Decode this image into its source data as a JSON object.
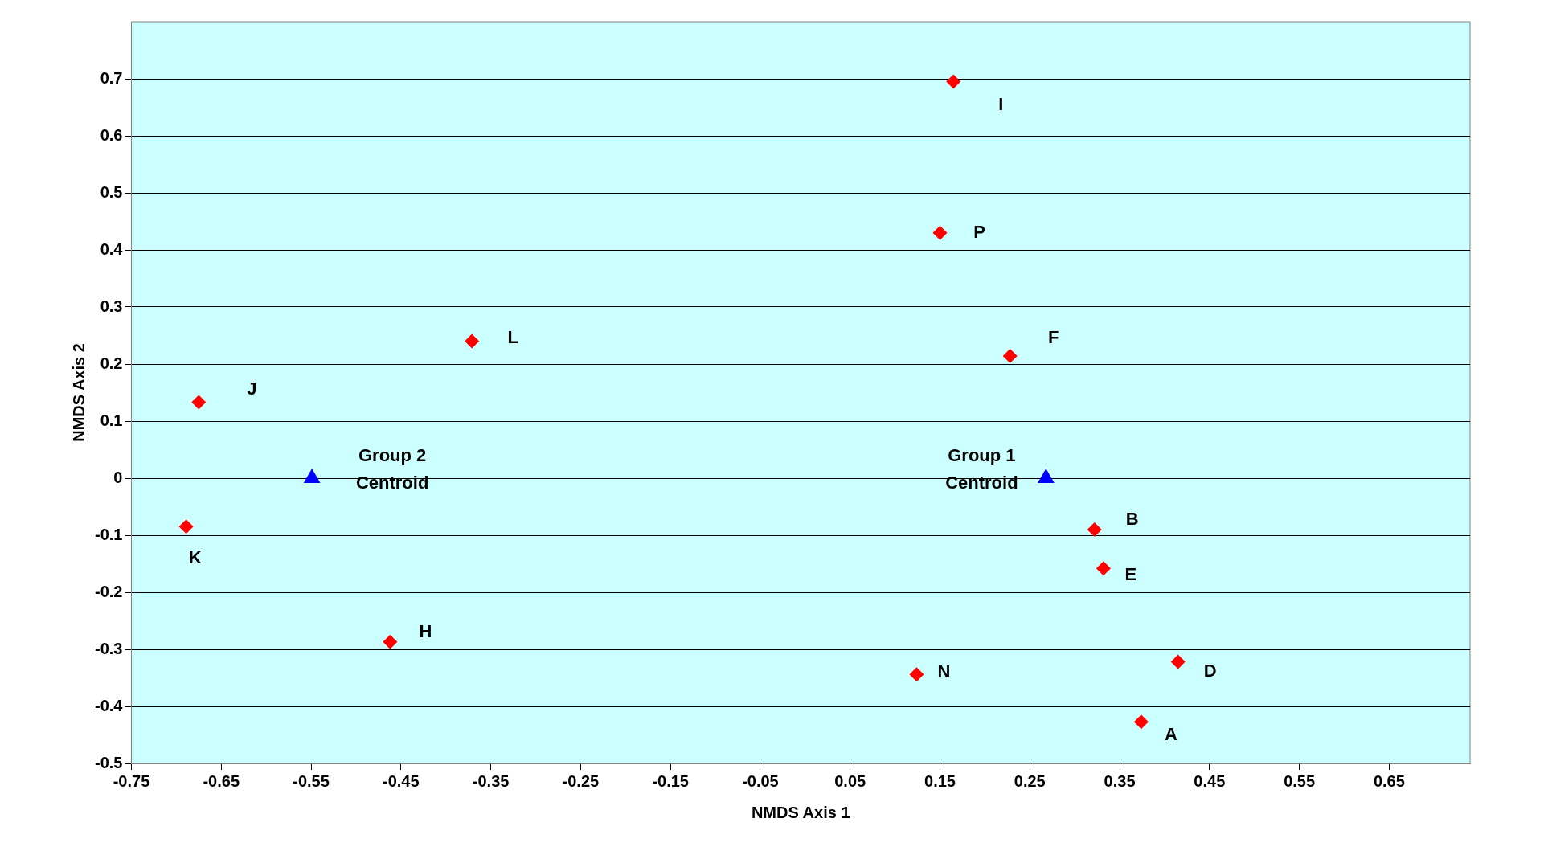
{
  "chart_data": {
    "type": "scatter",
    "xlabel": "NMDS Axis 1",
    "ylabel": "NMDS Axis 2",
    "series": [
      {
        "color": "#ff0000",
        "marker": "diamond",
        "x": [
          0.165,
          0.15,
          0.228,
          -0.371,
          -0.675,
          -0.689,
          -0.462,
          0.124,
          0.322,
          0.332,
          0.415,
          0.374
        ],
        "values": [
          0.695,
          0.43,
          0.214,
          0.24,
          0.133,
          -0.085,
          -0.287,
          -0.344,
          -0.09,
          -0.158,
          -0.322,
          -0.427
        ]
      },
      {
        "color": "#0000ff",
        "marker": "triangle",
        "x": [
          -0.549,
          0.268
        ],
        "values": [
          0,
          0
        ]
      }
    ],
    "xlim": [
      -0.75,
      0.74
    ],
    "ylim": [
      -0.5,
      0.8
    ],
    "xticks": [
      -0.75,
      -0.65,
      -0.55,
      -0.45,
      -0.35,
      -0.25,
      -0.15,
      -0.05,
      0.05,
      0.15,
      0.25,
      0.35,
      0.45,
      0.55,
      0.65
    ],
    "yticks": [
      -0.5,
      -0.4,
      -0.3,
      -0.2,
      -0.1,
      0,
      0.1,
      0.2,
      0.3,
      0.4,
      0.5,
      0.6,
      0.7
    ],
    "grid": "y",
    "legend": false,
    "annotations": [
      {
        "text": "I",
        "x": 0.165,
        "y": 0.695
      },
      {
        "text": "P",
        "x": 0.15,
        "y": 0.43
      },
      {
        "text": "F",
        "x": 0.228,
        "y": 0.214
      },
      {
        "text": "L",
        "x": -0.371,
        "y": 0.24
      },
      {
        "text": "J",
        "x": -0.675,
        "y": 0.133
      },
      {
        "text": "K",
        "x": -0.689,
        "y": -0.085
      },
      {
        "text": "H",
        "x": -0.462,
        "y": -0.287
      },
      {
        "text": "N",
        "x": 0.124,
        "y": -0.344
      },
      {
        "text": "B",
        "x": 0.322,
        "y": -0.09
      },
      {
        "text": "E",
        "x": 0.332,
        "y": -0.158
      },
      {
        "text": "D",
        "x": 0.415,
        "y": -0.322
      },
      {
        "text": "A",
        "x": 0.374,
        "y": -0.427
      },
      {
        "text": "Group 2\nCentroid",
        "x": -0.549,
        "y": 0
      },
      {
        "text": "Group 1\nCentroid",
        "x": 0.268,
        "y": 0
      }
    ]
  }
}
